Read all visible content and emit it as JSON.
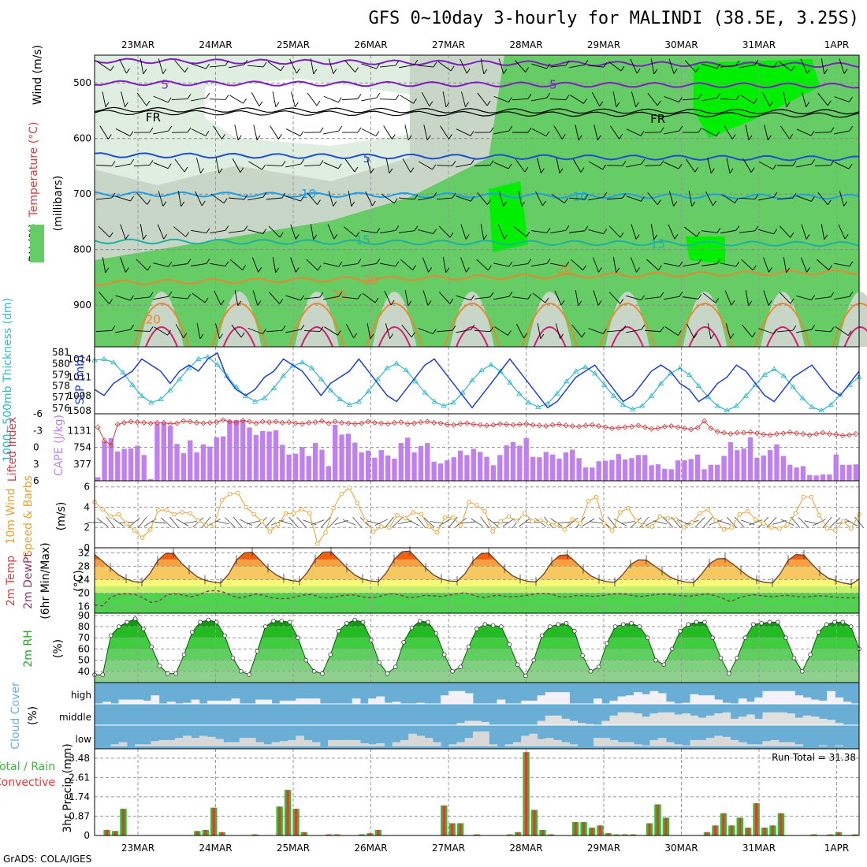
{
  "title": "GFS 0~10day 3-hourly for MALINDI (38.5E, 3.25S)",
  "credit": "GrADS: COLA/IGES",
  "dates": [
    "23MAR",
    "24MAR",
    "25MAR",
    "26MAR",
    "27MAR",
    "28MAR",
    "29MAR",
    "30MAR",
    "31MAR",
    "1APR"
  ],
  "colors": {
    "rh_light": "#dfeee0",
    "rh_mid": "#c8d6c8",
    "rh_green": "#66cc66",
    "rh_bright": "#00ee00",
    "bar": "#c080f0",
    "li": "#d04040",
    "sst": "#1f8fd0",
    "slp": "#1f3fd0",
    "thick": "#30b8c8",
    "wind": "#e8a030",
    "rh2m": "#22aa22",
    "cloud": "#6aaed6",
    "precip_total": "#33bb33",
    "precip_conv": "#ee3333"
  },
  "chart_data": [
    {
      "id": "upper_air",
      "type": "heatmap",
      "labels": {
        "wind": "Wind (m/s)",
        "temp": "Temperature (°C)",
        "rh": "RH (%)",
        "axis": "(millibars)"
      },
      "yticks": [
        500,
        600,
        700,
        800,
        900
      ],
      "ylim": [
        450,
        975
      ],
      "contour_labels": [
        {
          "text": "5",
          "level": 503,
          "day": 0.3
        },
        {
          "text": "5",
          "level": 503,
          "day": 5.3
        },
        {
          "text": "FR",
          "level": 562,
          "day": 0.1
        },
        {
          "text": "FR",
          "level": 565,
          "day": 6.6
        },
        {
          "text": "5",
          "level": 636,
          "day": 2.9
        },
        {
          "text": "10",
          "level": 700,
          "day": 2.1
        },
        {
          "text": "10",
          "level": 705,
          "day": 5.6
        },
        {
          "text": "15",
          "level": 783,
          "day": 2.8
        },
        {
          "text": "15",
          "level": 790,
          "day": 6.6
        },
        {
          "text": "20",
          "level": 926,
          "day": 0.1
        },
        {
          "text": "20",
          "level": 855,
          "day": 2.9
        },
        {
          "text": "25",
          "level": 882,
          "day": 2.5
        },
        {
          "text": "20",
          "level": 835,
          "day": 5.4
        }
      ]
    },
    {
      "id": "thickness_slp",
      "type": "line",
      "labels": {
        "thick": "1000~500mb Thickness (dm)",
        "slp": "SLP (mb)"
      },
      "thick_ticks": [
        576,
        577,
        578,
        579,
        580,
        581
      ],
      "slp_ticks": [
        1008,
        1011,
        1014
      ],
      "slp_bottom_label": "1508",
      "slp_values": [
        1009,
        1008,
        1010,
        1011,
        1012,
        1014,
        1013,
        1012,
        1010,
        1012,
        1013,
        1012,
        1014,
        1015,
        1011,
        1009,
        1008,
        1009,
        1011,
        1012,
        1014,
        1013,
        1012,
        1010,
        1008,
        1010,
        1011,
        1012,
        1014,
        1012,
        1010,
        1008,
        1007,
        1009,
        1011,
        1013,
        1014,
        1012,
        1010,
        1008,
        1006,
        1008,
        1010,
        1012,
        1014,
        1012,
        1010,
        1008,
        1006,
        1007,
        1009,
        1011,
        1012,
        1013,
        1011,
        1009,
        1007,
        1008,
        1010,
        1012,
        1013,
        1012,
        1010,
        1009,
        1007,
        1008,
        1010,
        1011,
        1013,
        1012,
        1010,
        1008,
        1007,
        1009,
        1011,
        1012,
        1013,
        1011,
        1009,
        1008,
        1010,
        1012
      ],
      "thick_values": [
        580.3,
        580.4,
        580.1,
        579.2,
        578.1,
        577.1,
        576.5,
        576.8,
        577.6,
        578.6,
        579.6,
        580.4,
        580.6,
        579.9,
        578.9,
        577.9,
        577.1,
        576.6,
        576.9,
        577.8,
        578.9,
        579.8,
        580.1,
        579.6,
        578.6,
        577.6,
        576.8,
        576.3,
        576.6,
        577.5,
        578.6,
        579.6,
        580.0,
        579.4,
        578.4,
        577.4,
        576.6,
        576.2,
        576.5,
        577.4,
        578.5,
        579.4,
        579.9,
        579.3,
        578.3,
        577.3,
        576.5,
        576.1,
        576.4,
        577.3,
        578.4,
        579.3,
        579.7,
        579.1,
        578.1,
        577.1,
        576.3,
        575.9,
        576.2,
        577.1,
        578.2,
        579.1,
        579.6,
        579.0,
        578.0,
        577.0,
        576.2,
        575.8,
        576.2,
        577.1,
        578.1,
        579.0,
        579.5,
        578.9,
        577.9,
        576.9,
        576.1,
        575.8,
        576.3,
        577.2,
        578.1,
        578.8
      ]
    },
    {
      "id": "cape_li",
      "type": "bar",
      "labels": {
        "li": "Lifted Index",
        "cape": "CAPE (J/kg)"
      },
      "li_ticks": [
        "6",
        "3",
        "0",
        "-3",
        "-6"
      ],
      "cape_ticks": [
        377,
        754,
        1131
      ],
      "cape_values": [
        80,
        890,
        960,
        660,
        720,
        730,
        790,
        580,
        40,
        1290,
        1320,
        1230,
        830,
        620,
        910,
        640,
        820,
        770,
        980,
        1000,
        1360,
        1370,
        1370,
        1200,
        1030,
        1120,
        1110,
        1140,
        810,
        590,
        610,
        760,
        560,
        850,
        700,
        330,
        1260,
        1040,
        1060,
        860,
        640,
        680,
        520,
        690,
        570,
        500,
        850,
        970,
        640,
        780,
        850,
        430,
        390,
        460,
        530,
        680,
        580,
        720,
        650,
        540,
        350,
        580,
        800,
        870,
        790,
        960,
        540,
        530,
        650,
        590,
        500,
        640,
        700,
        510,
        300,
        300,
        440,
        450,
        470,
        600,
        480,
        510,
        580,
        580,
        350,
        370,
        270,
        260,
        460,
        460,
        490,
        590,
        260,
        360,
        360,
        560,
        870,
        690,
        730,
        980,
        520,
        570,
        690,
        820,
        560,
        360,
        300,
        330,
        130,
        120,
        140,
        140,
        590,
        360,
        360,
        370
      ],
      "li_values": [
        -3.6,
        -1.2,
        -0.4,
        -4.1,
        -4.4,
        -4.6,
        -4.5,
        -4.4,
        -4.3,
        -4.4,
        -4.4,
        -4.2,
        -4.3,
        -4.7,
        -4.6,
        -4.4,
        -4.3,
        -4.4,
        -4.5,
        -4.9,
        -4.6,
        -4.4,
        -4.8,
        -4.6,
        -4.3,
        -4.6,
        -4.5,
        -4.6,
        -4.4,
        -4.5,
        -4.3,
        -4.2,
        -4.4,
        -4.5,
        -4.7,
        -4.3,
        -4.6,
        -4.4,
        -4.3,
        -4.2,
        -4.3,
        -4.6,
        -4.4,
        -4.3,
        -4.2,
        -4.4,
        -4.5,
        -4.2,
        -4.3,
        -4.5,
        -4.6,
        -4.4,
        -4.3,
        -4.1,
        -4.0,
        -4.2,
        -4.3,
        -4.1,
        -4.0,
        -3.9,
        -4.0,
        -4.2,
        -4.1,
        -4.0,
        -4.1,
        -4.2,
        -4.0,
        -3.9,
        -3.8,
        -4.0,
        -4.1,
        -3.9,
        -3.8,
        -3.7,
        -3.9,
        -4.0,
        -3.8,
        -3.6,
        -3.4,
        -3.5,
        -3.6,
        -3.7,
        -3.9,
        -3.6,
        -3.3,
        -3.4,
        -3.7,
        -3.8,
        -3.6,
        -3.4,
        -3.2,
        -3.5,
        -4.7,
        -3.4,
        -2.8,
        -2.6,
        -2.4,
        -2.6,
        -2.6,
        -2.7,
        -2.5,
        -2.3,
        -2.2,
        -2.4,
        -2.5,
        -2.7,
        -2.5,
        -2.4,
        -2.2,
        -2.4,
        -2.6,
        -2.4,
        -2.3,
        -2.1,
        -2.2,
        -2.4
      ]
    },
    {
      "id": "wind10m",
      "type": "line",
      "labels": {
        "main": "10m Wind",
        "sub": "Speed & Barbs",
        "unit": "(m/s)"
      },
      "yticks": [
        0,
        2,
        4,
        6
      ],
      "values": [
        4.5,
        3.8,
        3.1,
        3.3,
        2.4,
        1.7,
        1.0,
        1.8,
        3.7,
        3.7,
        3.3,
        3.5,
        3.4,
        2.7,
        2.2,
        2.3,
        4.7,
        5.3,
        5.4,
        4.0,
        3.3,
        2.6,
        1.6,
        2.3,
        3.4,
        3.4,
        3.8,
        3.4,
        0.4,
        1.5,
        3.9,
        5.3,
        5.9,
        4.4,
        2.7,
        1.6,
        2.1,
        2.0,
        3.2,
        2.9,
        3.5,
        3.3,
        2.1,
        1.5,
        3.0,
        3.0,
        2.2,
        4.5,
        4.2,
        3.6,
        1.6,
        2.6,
        3.1,
        2.6,
        3.4,
        2.6,
        2.7,
        2.4,
        2.3,
        1.8,
        2.8,
        2.4,
        4.6,
        5.0,
        2.4,
        1.7,
        3.5,
        3.9,
        2.7,
        2.2,
        2.1,
        3.1,
        2.9,
        2.8,
        2.0,
        2.5,
        3.4,
        3.8,
        2.7,
        1.8,
        2.0,
        3.3,
        3.6,
        2.8,
        2.4,
        2.0,
        1.9,
        2.3,
        3.4,
        5.0,
        5.0,
        3.2,
        1.9,
        1.7,
        2.6,
        1.9,
        3.3
      ]
    },
    {
      "id": "temp2m",
      "type": "area",
      "labels": {
        "main": "2m Temp",
        "sub": "2m DewPt",
        "sub2": "(6hr Min/Max)",
        "unit": "(°C)"
      },
      "yticks": [
        16,
        20,
        24,
        28,
        32
      ],
      "temp_values": [
        31.5,
        29.5,
        27.5,
        25.5,
        24.2,
        23.4,
        23.2,
        25.8,
        29.6,
        31.8,
        31.8,
        29.0,
        26.8,
        24.9,
        23.8,
        23.3,
        23.0,
        25.6,
        29.8,
        32.0,
        32.2,
        29.8,
        27.3,
        25.5,
        24.3,
        23.7,
        23.5,
        26.2,
        30.0,
        32.2,
        32.3,
        30.0,
        27.5,
        25.4,
        24.2,
        23.6,
        23.4,
        26.0,
        30.0,
        32.3,
        32.5,
        30.0,
        27.5,
        25.4,
        24.2,
        23.6,
        23.5,
        25.8,
        29.5,
        31.7,
        32.0,
        29.5,
        27.2,
        25.2,
        24.1,
        23.5,
        23.3,
        25.7,
        29.2,
        31.2,
        31.4,
        29.3,
        27.0,
        25.1,
        24.0,
        23.4,
        23.2,
        25.5,
        28.5,
        29.9,
        29.8,
        28.2,
        26.5,
        24.8,
        23.8,
        23.3,
        23.1,
        25.6,
        28.7,
        30.2,
        30.3,
        28.6,
        26.7,
        24.9,
        23.8,
        23.2,
        23.0,
        25.8,
        29.8,
        31.5,
        31.3,
        28.7,
        26.3,
        24.6,
        23.7,
        23.0,
        22.6,
        24.2
      ],
      "dew_values": [
        16.5,
        16.2,
        18.8,
        19.6,
        19.8,
        19.6,
        18.6,
        17.2,
        17.6,
        19.5,
        19.8,
        19.4,
        18.9,
        19.5,
        20.5,
        20.8,
        20.3,
        19.2,
        18.6,
        19.0,
        19.7,
        19.3,
        18.6,
        18.3,
        18.4,
        18.9,
        19.4,
        19.6,
        18.8,
        18.5,
        18.9,
        19.3,
        19.5,
        19.0,
        18.6,
        18.8,
        19.4,
        19.8,
        19.4,
        18.6,
        18.8,
        19.3,
        19.2,
        19.0,
        19.3,
        19.8,
        20.1,
        19.4,
        18.7,
        18.9,
        19.4,
        19.0,
        18.9,
        19.1,
        19.4,
        19.8,
        19.9,
        19.5,
        18.8,
        18.9,
        19.3,
        19.2,
        19.0,
        19.2,
        19.6,
        19.8,
        19.6,
        19.2,
        19.0,
        19.3,
        19.6,
        19.7,
        19.4,
        19.2,
        19.1,
        19.4,
        19.7,
        19.3,
        18.5,
        17.4,
        18.5,
        19.2,
        19.5,
        19.2,
        18.9,
        19.1,
        19.3,
        19.1,
        18.8,
        19.0,
        19.2,
        19.1,
        18.8,
        18.6,
        18.5,
        18.6
      ]
    },
    {
      "id": "rh2m",
      "type": "area",
      "labels": {
        "main": "2m RH",
        "unit": "(%)"
      },
      "yticks": [
        40,
        50,
        60,
        70,
        80,
        90
      ],
      "values": [
        37,
        37,
        72,
        80,
        84,
        87,
        78,
        62,
        45,
        38,
        38,
        55,
        75,
        84,
        86,
        84,
        72,
        52,
        40,
        37,
        58,
        80,
        85,
        85,
        84,
        70,
        50,
        40,
        38,
        55,
        76,
        83,
        86,
        84,
        68,
        48,
        38,
        44,
        66,
        79,
        85,
        84,
        74,
        55,
        40,
        44,
        62,
        78,
        82,
        81,
        80,
        64,
        46,
        36,
        50,
        72,
        80,
        82,
        83,
        76,
        54,
        40,
        44,
        65,
        80,
        82,
        83,
        80,
        70,
        50,
        46,
        60,
        76,
        82,
        84,
        84,
        70,
        52,
        38,
        52,
        70,
        82,
        83,
        84,
        84,
        70,
        52,
        40,
        55,
        75,
        82,
        84,
        84,
        80,
        60
      ]
    },
    {
      "id": "cloud",
      "type": "area",
      "labels": {
        "main": "Cloud Cover",
        "unit": "(%)",
        "high": "high",
        "middle": "middle",
        "low": "low"
      },
      "high_values": [
        0,
        10,
        0,
        20,
        20,
        20,
        15,
        40,
        0,
        10,
        0,
        5,
        20,
        0,
        15,
        15,
        15,
        25,
        0,
        0,
        20,
        20,
        0,
        15,
        15,
        25,
        25,
        25,
        0,
        0,
        0,
        0,
        25,
        0,
        25,
        35,
        5,
        10,
        0,
        0,
        5,
        0,
        0,
        40,
        60,
        60,
        50,
        0,
        0,
        0,
        20,
        0,
        0,
        15,
        15,
        40,
        55,
        55,
        55,
        0,
        0,
        0,
        25,
        0,
        15,
        35,
        40,
        55,
        45,
        60,
        50,
        10,
        0,
        5,
        45,
        40,
        40,
        20,
        5,
        0,
        25,
        10,
        30,
        60,
        60,
        60,
        60,
        40,
        30,
        20,
        15,
        60,
        30,
        10,
        0
      ],
      "mid_values": [
        0,
        0,
        0,
        0,
        0,
        0,
        0,
        0,
        0,
        0,
        0,
        0,
        0,
        0,
        0,
        0,
        0,
        0,
        0,
        0,
        0,
        0,
        0,
        0,
        0,
        0,
        0,
        0,
        0,
        0,
        0,
        0,
        0,
        0,
        0,
        0,
        0,
        0,
        0,
        0,
        0,
        0,
        0,
        0,
        0,
        10,
        20,
        20,
        15,
        0,
        0,
        0,
        0,
        0,
        0,
        20,
        45,
        45,
        30,
        20,
        10,
        5,
        0,
        20,
        45,
        60,
        60,
        55,
        40,
        55,
        60,
        60,
        50,
        55,
        45,
        35,
        45,
        55,
        60,
        30,
        40,
        50,
        30,
        60,
        60,
        60,
        55,
        35,
        45,
        40,
        30,
        25,
        10,
        0,
        0
      ],
      "low_values": [
        0,
        0,
        10,
        20,
        0,
        10,
        10,
        25,
        30,
        30,
        40,
        50,
        40,
        50,
        45,
        35,
        20,
        20,
        40,
        40,
        20,
        10,
        20,
        25,
        30,
        50,
        30,
        20,
        0,
        30,
        30,
        30,
        30,
        15,
        10,
        15,
        0,
        20,
        30,
        60,
        50,
        40,
        20,
        0,
        10,
        20,
        40,
        70,
        70,
        10,
        0,
        10,
        20,
        50,
        60,
        35,
        40,
        30,
        20,
        10,
        0,
        0,
        40,
        40,
        30,
        20,
        20,
        10,
        5,
        30,
        40,
        20,
        10,
        5,
        30,
        30,
        40,
        50,
        45,
        30,
        20,
        10,
        10,
        25,
        30,
        20,
        20,
        10,
        0,
        0,
        5,
        0,
        5,
        0,
        0
      ]
    },
    {
      "id": "precip",
      "type": "bar",
      "labels": {
        "main": "Total / Rain",
        "sub": "Convective",
        "unit": "3hr Precip (mm)",
        "total": "Run Total = 31.38"
      },
      "yticks": [
        0,
        0.87,
        1.74,
        2.61,
        3.48
      ],
      "values": [
        0,
        0.25,
        0.2,
        1.2,
        0,
        0,
        0,
        0,
        0,
        0,
        0,
        0,
        0.2,
        0.25,
        1.25,
        0.15,
        0,
        0,
        0,
        0.05,
        0,
        0,
        1.3,
        2.05,
        1.2,
        0.15,
        0,
        0,
        0.05,
        0.05,
        0,
        0,
        0.05,
        0.1,
        0.25,
        0,
        0,
        0,
        0,
        0,
        0,
        0,
        1.35,
        0.55,
        0.55,
        0,
        0.05,
        0,
        0,
        0,
        0.05,
        0.15,
        3.75,
        1.15,
        0.25,
        0.05,
        0,
        0,
        0.6,
        0.6,
        0.35,
        0.45,
        0.1,
        0.05,
        0.05,
        0.05,
        0,
        0.55,
        1.4,
        0.8,
        0,
        0,
        0,
        0,
        0.15,
        0.45,
        1.0,
        0.45,
        0.8,
        0.35,
        1.45,
        0.35,
        0.45,
        1.0,
        0,
        0,
        0,
        0.05,
        0,
        0.05,
        0.15,
        0,
        0.05
      ]
    }
  ]
}
